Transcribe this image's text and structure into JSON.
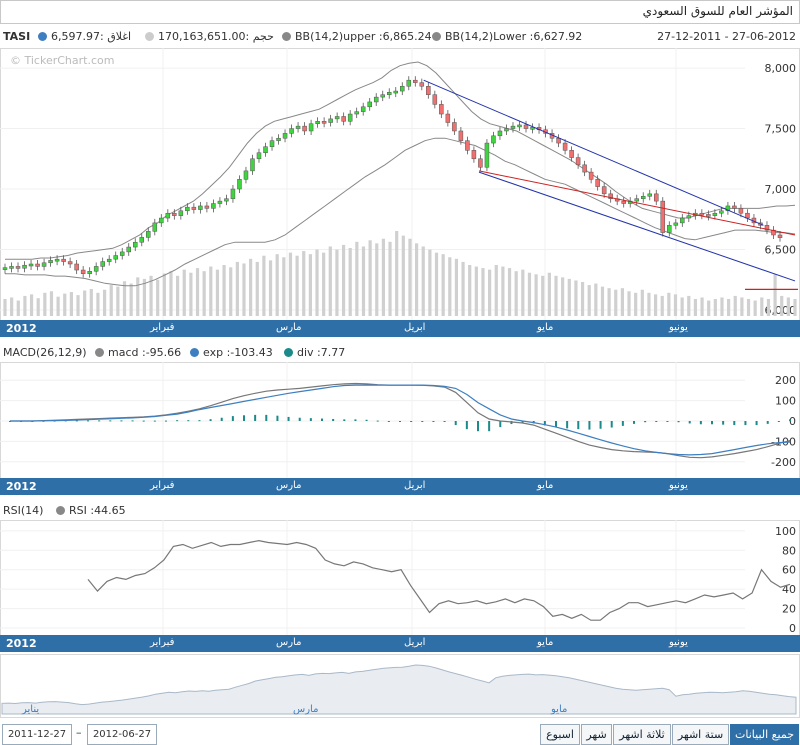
{
  "header": {
    "title": "المؤشر العام للسوق السعودي"
  },
  "legend": {
    "symbol": "TASI",
    "close_value": "6,597.97:",
    "close_label": "اغلاق",
    "volume_value": "170,163,651.00:",
    "volume_label": "حجم",
    "bb_upper": "BB(14,2)upper :6,865.24",
    "bb_lower": "BB(14,2)Lower :6,627.92",
    "date_range": "27-12-2011 - 27-06-2012",
    "watermark": "© TickerChart.com",
    "colors": {
      "close": "#3d7fc0",
      "volume": "#cccccc",
      "bb_upper": "#888888",
      "bb_lower": "#888888"
    }
  },
  "months": {
    "year": "2012",
    "feb": "فبراير",
    "mar": "مارس",
    "apr": "ابريل",
    "may": "مايو",
    "jun": "يونيو",
    "jan": "يناير"
  },
  "macd_legend": {
    "title": "MACD(26,12,9)",
    "macd": "macd :-95.66",
    "exp": "exp :-103.43",
    "div": "div :7.77"
  },
  "rsi_legend": {
    "title": "RSI(14)",
    "rsi": "RSI :44.65"
  },
  "controls": {
    "from_date": "2011-12-27",
    "to_date": "2012-06-27",
    "separator": "–",
    "buttons": [
      "اسبوع",
      "شهر",
      "ثلاثة اشهر",
      "ستة اشهر",
      "جميع البيانات"
    ]
  },
  "chart_data": [
    {
      "type": "candlestick",
      "title": "TASI",
      "ylim": [
        5950,
        8100
      ],
      "yticks": [
        "8,000",
        "7,500",
        "7,000",
        "6,500",
        "6,000"
      ],
      "ytick_values": [
        8000,
        7500,
        7000,
        6500,
        6000
      ],
      "close_series": [
        6350,
        6360,
        6345,
        6370,
        6380,
        6360,
        6390,
        6410,
        6420,
        6400,
        6380,
        6330,
        6300,
        6320,
        6360,
        6400,
        6420,
        6450,
        6480,
        6520,
        6560,
        6600,
        6650,
        6720,
        6760,
        6800,
        6780,
        6820,
        6850,
        6830,
        6860,
        6840,
        6880,
        6900,
        6920,
        7000,
        7080,
        7150,
        7250,
        7300,
        7350,
        7400,
        7420,
        7460,
        7500,
        7520,
        7480,
        7540,
        7560,
        7550,
        7580,
        7600,
        7560,
        7620,
        7640,
        7680,
        7720,
        7760,
        7780,
        7800,
        7810,
        7850,
        7900,
        7880,
        7850,
        7780,
        7700,
        7620,
        7550,
        7480,
        7400,
        7320,
        7250,
        7180,
        7380,
        7440,
        7480,
        7500,
        7520,
        7530,
        7500,
        7510,
        7490,
        7460,
        7420,
        7380,
        7320,
        7260,
        7200,
        7140,
        7080,
        7020,
        6960,
        6920,
        6900,
        6880,
        6900,
        6920,
        6940,
        6960,
        6900,
        6640,
        6700,
        6720,
        6760,
        6780,
        6800,
        6790,
        6780,
        6800,
        6820,
        6860,
        6840,
        6800,
        6760,
        6720,
        6700,
        6660,
        6620,
        6598
      ],
      "volume_series": [
        22,
        24,
        20,
        26,
        28,
        23,
        30,
        32,
        25,
        29,
        31,
        27,
        33,
        35,
        30,
        34,
        40,
        38,
        45,
        42,
        50,
        48,
        52,
        47,
        55,
        58,
        52,
        60,
        56,
        62,
        58,
        64,
        60,
        66,
        63,
        70,
        68,
        74,
        70,
        78,
        72,
        80,
        76,
        82,
        78,
        84,
        80,
        86,
        82,
        90,
        86,
        92,
        88,
        96,
        90,
        98,
        94,
        100,
        96,
        110,
        104,
        100,
        94,
        90,
        86,
        82,
        80,
        76,
        74,
        70,
        66,
        64,
        62,
        60,
        66,
        64,
        62,
        58,
        60,
        56,
        54,
        52,
        56,
        52,
        50,
        48,
        46,
        44,
        40,
        42,
        38,
        36,
        34,
        36,
        32,
        30,
        34,
        30,
        28,
        26,
        30,
        28,
        24,
        26,
        22,
        24,
        20,
        22,
        24,
        22,
        26,
        24,
        22,
        20,
        24,
        22,
        54,
        26,
        24,
        22
      ],
      "bb_upper": [
        6420,
        6420,
        6420,
        6420,
        6430,
        6430,
        6440,
        6450,
        6470,
        6480,
        6490,
        6500,
        6510,
        6540,
        6580,
        6620,
        6680,
        6720,
        6780,
        6820,
        6860,
        6900,
        6960,
        7030,
        7100,
        7180,
        7280,
        7380,
        7460,
        7520,
        7560,
        7580,
        7600,
        7620,
        7640,
        7660,
        7700,
        7740,
        7780,
        7820,
        7850,
        7880,
        7920,
        7980,
        8020,
        8040,
        8050,
        8020,
        7960,
        7880,
        7800,
        7720,
        7640,
        7580,
        7540,
        7520,
        7500,
        7480,
        7440,
        7400,
        7360,
        7320,
        7280,
        7240,
        7190,
        7140,
        7090,
        7040,
        6980,
        6930,
        6880,
        6840,
        6820,
        6800,
        6780,
        6760,
        6760,
        6780,
        6800,
        6820,
        6840,
        6840,
        6840,
        6840,
        6840,
        6850,
        6860,
        6860,
        6865
      ],
      "bb_lower": [
        6300,
        6300,
        6290,
        6290,
        6290,
        6280,
        6280,
        6270,
        6260,
        6240,
        6220,
        6210,
        6200,
        6200,
        6220,
        6250,
        6290,
        6330,
        6380,
        6420,
        6460,
        6500,
        6540,
        6560,
        6560,
        6560,
        6560,
        6580,
        6620,
        6680,
        6740,
        6800,
        6860,
        6920,
        6980,
        7040,
        7100,
        7150,
        7200,
        7260,
        7320,
        7360,
        7400,
        7420,
        7420,
        7400,
        7380,
        7360,
        7320,
        7280,
        7230,
        7200,
        7160,
        7120,
        7080,
        7060,
        7040,
        7000,
        6960,
        6920,
        6880,
        6840,
        6800,
        6760,
        6720,
        6680,
        6650,
        6620,
        6590,
        6580,
        6600,
        6620,
        6640,
        6660,
        6660,
        6660,
        6650,
        6640,
        6640,
        6628
      ],
      "channel_upper": [
        [
          7900,
          0.53
        ],
        [
          6700,
          0.96
        ]
      ],
      "channel_lower": [
        [
          7140,
          0.6
        ],
        [
          6240,
          1.0
        ]
      ],
      "support_line": [
        [
          7150,
          0.6
        ],
        [
          6620,
          1.0
        ]
      ],
      "level_line": 6170
    },
    {
      "type": "line",
      "title": "MACD(26,12,9)",
      "ylim": [
        -250,
        250
      ],
      "yticks": [
        "200",
        "100",
        "0",
        "-100",
        "-200"
      ],
      "ytick_values": [
        200,
        100,
        0,
        -100,
        -200
      ],
      "macd": [
        0,
        0,
        0,
        2,
        4,
        6,
        8,
        10,
        12,
        14,
        16,
        18,
        20,
        24,
        30,
        38,
        48,
        60,
        75,
        92,
        110,
        124,
        136,
        146,
        152,
        156,
        160,
        166,
        172,
        178,
        182,
        184,
        182,
        178,
        176,
        176,
        176,
        175,
        172,
        166,
        140,
        90,
        40,
        10,
        0,
        -5,
        -10,
        -20,
        -40,
        -60,
        -80,
        -100,
        -118,
        -130,
        -140,
        -146,
        -150,
        -152,
        -154,
        -160,
        -170,
        -178,
        -180,
        -176,
        -168,
        -160,
        -150,
        -140,
        -126,
        -110,
        -96
      ],
      "exp": [
        0,
        0,
        0,
        1,
        2,
        3,
        5,
        7,
        9,
        11,
        13,
        15,
        18,
        22,
        28,
        34,
        44,
        56,
        66,
        76,
        86,
        96,
        106,
        116,
        126,
        136,
        144,
        152,
        160,
        168,
        174,
        176,
        176,
        176,
        176,
        176,
        176,
        176,
        174,
        170,
        160,
        130,
        90,
        60,
        30,
        10,
        0,
        -8,
        -18,
        -30,
        -44,
        -60,
        -76,
        -92,
        -108,
        -122,
        -136,
        -146,
        -154,
        -160,
        -164,
        -166,
        -164,
        -160,
        -150,
        -140,
        -130,
        -120,
        -112,
        -106,
        -103
      ],
      "div": [
        0,
        0,
        0,
        1,
        2,
        3,
        3,
        3,
        3,
        3,
        3,
        3,
        2,
        2,
        2,
        4,
        4,
        4,
        9,
        16,
        24,
        28,
        30,
        30,
        26,
        20,
        16,
        14,
        12,
        10,
        8,
        8,
        6,
        2,
        0,
        0,
        0,
        -1,
        -2,
        -4,
        -20,
        -40,
        -50,
        -50,
        -30,
        -15,
        -10,
        -12,
        -22,
        -30,
        -36,
        -40,
        -42,
        -38,
        -32,
        -24,
        -14,
        -6,
        0,
        0,
        -6,
        -12,
        -16,
        -16,
        -18,
        -20,
        -20,
        -20,
        -14,
        -4,
        8
      ]
    },
    {
      "type": "line",
      "title": "RSI(14)",
      "ylim": [
        0,
        105
      ],
      "yticks": [
        "100",
        "80",
        "60",
        "40",
        "20",
        "0"
      ],
      "ytick_values": [
        100,
        80,
        60,
        40,
        20,
        0
      ],
      "rsi": [
        50,
        38,
        48,
        52,
        50,
        54,
        56,
        62,
        70,
        84,
        86,
        82,
        85,
        88,
        84,
        86,
        86,
        88,
        90,
        88,
        87,
        86,
        88,
        86,
        82,
        70,
        66,
        64,
        68,
        66,
        62,
        60,
        58,
        60,
        44,
        30,
        16,
        25,
        28,
        25,
        26,
        28,
        25,
        27,
        30,
        26,
        30,
        28,
        22,
        12,
        14,
        10,
        14,
        8,
        8,
        16,
        20,
        26,
        26,
        22,
        24,
        26,
        28,
        26,
        30,
        34,
        32,
        34,
        36,
        30,
        36,
        60,
        48,
        42,
        45
      ]
    }
  ]
}
